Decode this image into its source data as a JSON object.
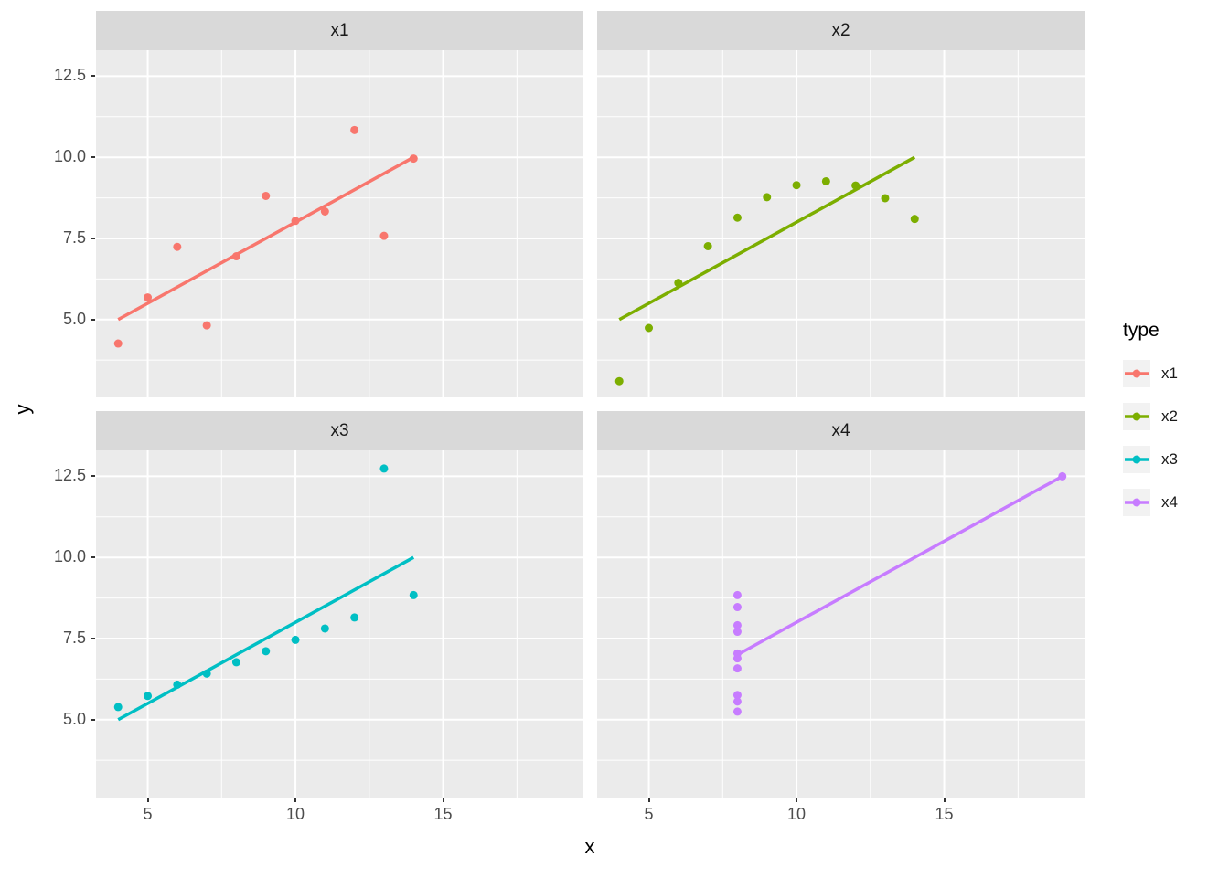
{
  "chart_data": {
    "type": "scatter",
    "title": "",
    "xlabel": "x",
    "ylabel": "y",
    "axes": {
      "xlim": [
        3.25,
        19.75
      ],
      "ylim": [
        2.6,
        13.3
      ],
      "x_ticks": [
        5,
        10,
        15
      ],
      "x_tick_labels": [
        "5",
        "10",
        "15"
      ],
      "x_minor_ticks": [
        7.5,
        12.5,
        17.5
      ],
      "y_ticks": [
        5,
        7.5,
        10,
        12.5
      ],
      "y_tick_labels": [
        "5.0",
        "7.5",
        "10.0",
        "12.5"
      ],
      "y_minor_ticks": [
        3.75,
        6.25,
        8.75,
        11.25
      ],
      "grid": true
    },
    "facets": [
      {
        "label": "x1",
        "color": "#F8766D",
        "points_x": [
          10,
          8,
          13,
          9,
          11,
          14,
          6,
          4,
          12,
          7,
          5
        ],
        "points_y": [
          8.04,
          6.95,
          7.58,
          8.81,
          8.33,
          9.96,
          7.24,
          4.26,
          10.84,
          4.82,
          5.68
        ],
        "trend_line": {
          "x1": 4,
          "y1": 5.0,
          "x2": 14,
          "y2": 10.0
        }
      },
      {
        "label": "x2",
        "color": "#7CAE00",
        "points_x": [
          10,
          8,
          13,
          9,
          11,
          14,
          6,
          4,
          12,
          7,
          5
        ],
        "points_y": [
          9.14,
          8.14,
          8.74,
          8.77,
          9.26,
          8.1,
          6.13,
          3.1,
          9.13,
          7.26,
          4.74
        ],
        "trend_line": {
          "x1": 4,
          "y1": 5.0,
          "x2": 14,
          "y2": 10.0
        }
      },
      {
        "label": "x3",
        "color": "#00BFC4",
        "points_x": [
          10,
          8,
          13,
          9,
          11,
          14,
          6,
          4,
          12,
          7,
          5
        ],
        "points_y": [
          7.46,
          6.77,
          12.74,
          7.11,
          7.81,
          8.84,
          6.08,
          5.39,
          8.15,
          6.42,
          5.73
        ],
        "trend_line": {
          "x1": 4,
          "y1": 5.0,
          "x2": 14,
          "y2": 10.0
        }
      },
      {
        "label": "x4",
        "color": "#C77CFF",
        "points_x": [
          8,
          8,
          8,
          8,
          8,
          8,
          8,
          19,
          8,
          8,
          8
        ],
        "points_y": [
          6.58,
          5.76,
          7.71,
          8.84,
          8.47,
          7.04,
          5.25,
          12.5,
          5.56,
          7.91,
          6.89
        ],
        "trend_line": {
          "x1": 8,
          "y1": 7.0,
          "x2": 19,
          "y2": 12.5
        }
      }
    ],
    "legend": {
      "title": "type",
      "position": "right",
      "entries": [
        {
          "label": "x1",
          "color": "#F8766D"
        },
        {
          "label": "x2",
          "color": "#7CAE00"
        },
        {
          "label": "x3",
          "color": "#00BFC4"
        },
        {
          "label": "x4",
          "color": "#C77CFF"
        }
      ]
    },
    "style": {
      "panel_bg": "#EBEBEB",
      "strip_bg": "#D9D9D9",
      "grid_color": "#FFFFFF",
      "axis_text_color": "#4D4D4D",
      "tick_color": "#333333",
      "legend_key_bg": "#F2F2F2"
    }
  }
}
